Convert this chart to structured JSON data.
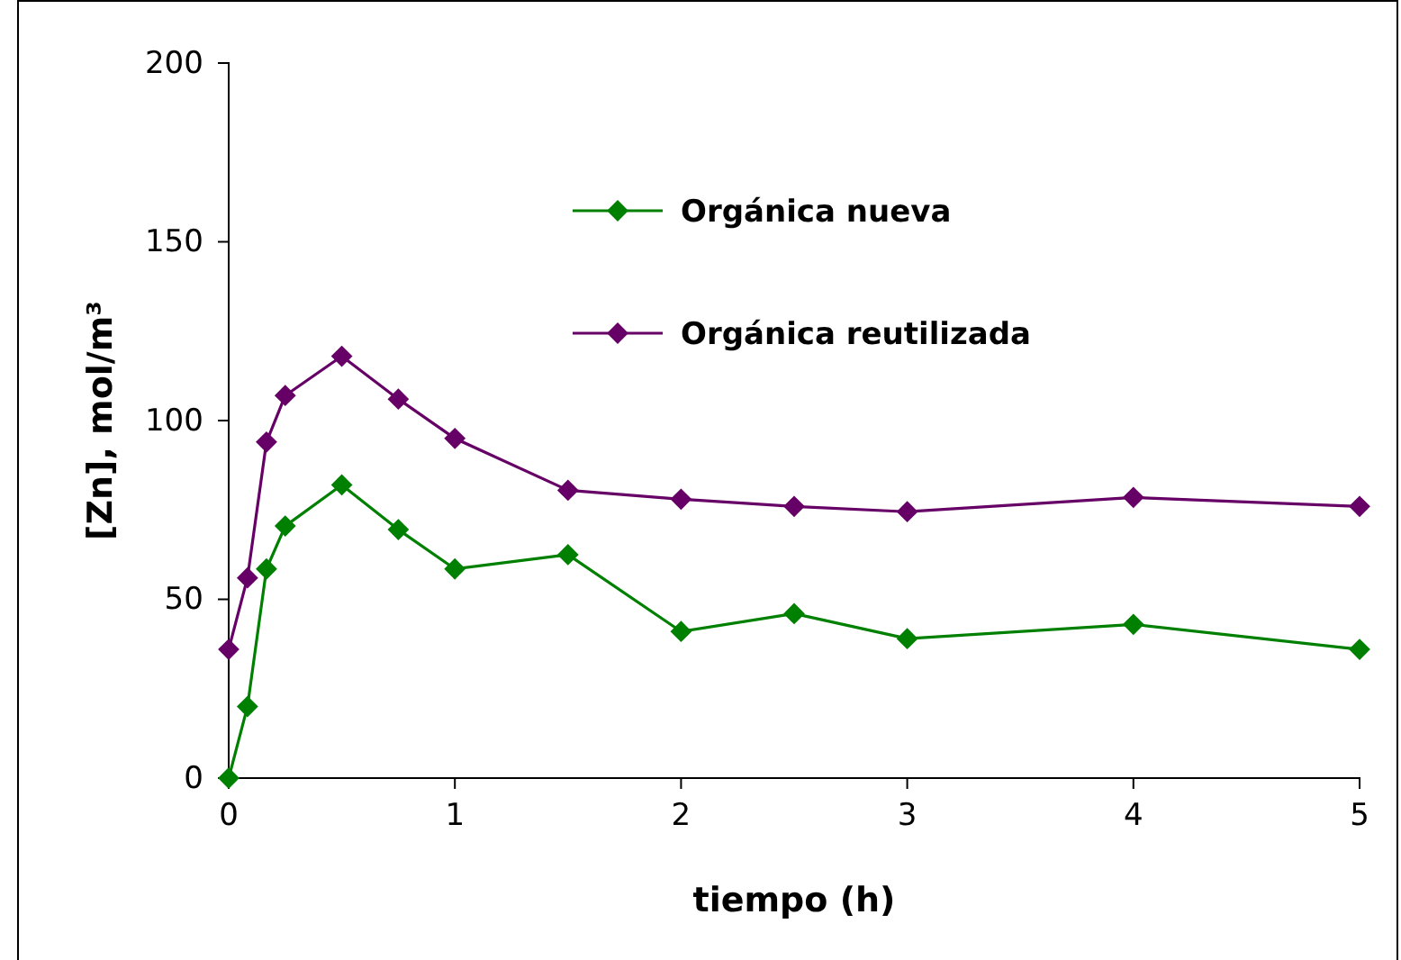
{
  "chart_data": {
    "type": "line",
    "xlabel": "tiempo (h)",
    "ylabel": "[Zn], mol/m³",
    "x": [
      0,
      0.083,
      0.167,
      0.25,
      0.5,
      0.75,
      1,
      1.5,
      2,
      2.5,
      3,
      4,
      5
    ],
    "series": [
      {
        "name": "Orgánica nueva",
        "color": "#008000",
        "values": [
          0,
          20,
          58.5,
          70.5,
          82,
          69.5,
          58.5,
          62.5,
          41,
          46,
          39,
          43,
          36
        ]
      },
      {
        "name": "Orgánica reutilizada",
        "color": "#660066",
        "values": [
          36,
          56,
          94,
          107,
          118,
          106,
          95,
          80.5,
          78,
          76,
          74.5,
          78.5,
          76
        ]
      }
    ],
    "xlim": [
      0,
      5
    ],
    "xticks": [
      0,
      1,
      2,
      3,
      4,
      5
    ],
    "ylim": [
      0,
      200
    ],
    "yticks": [
      0,
      50,
      100,
      150,
      200
    ],
    "grid": false,
    "legend": "top right",
    "marker": "diamond",
    "line_style": "solid"
  }
}
